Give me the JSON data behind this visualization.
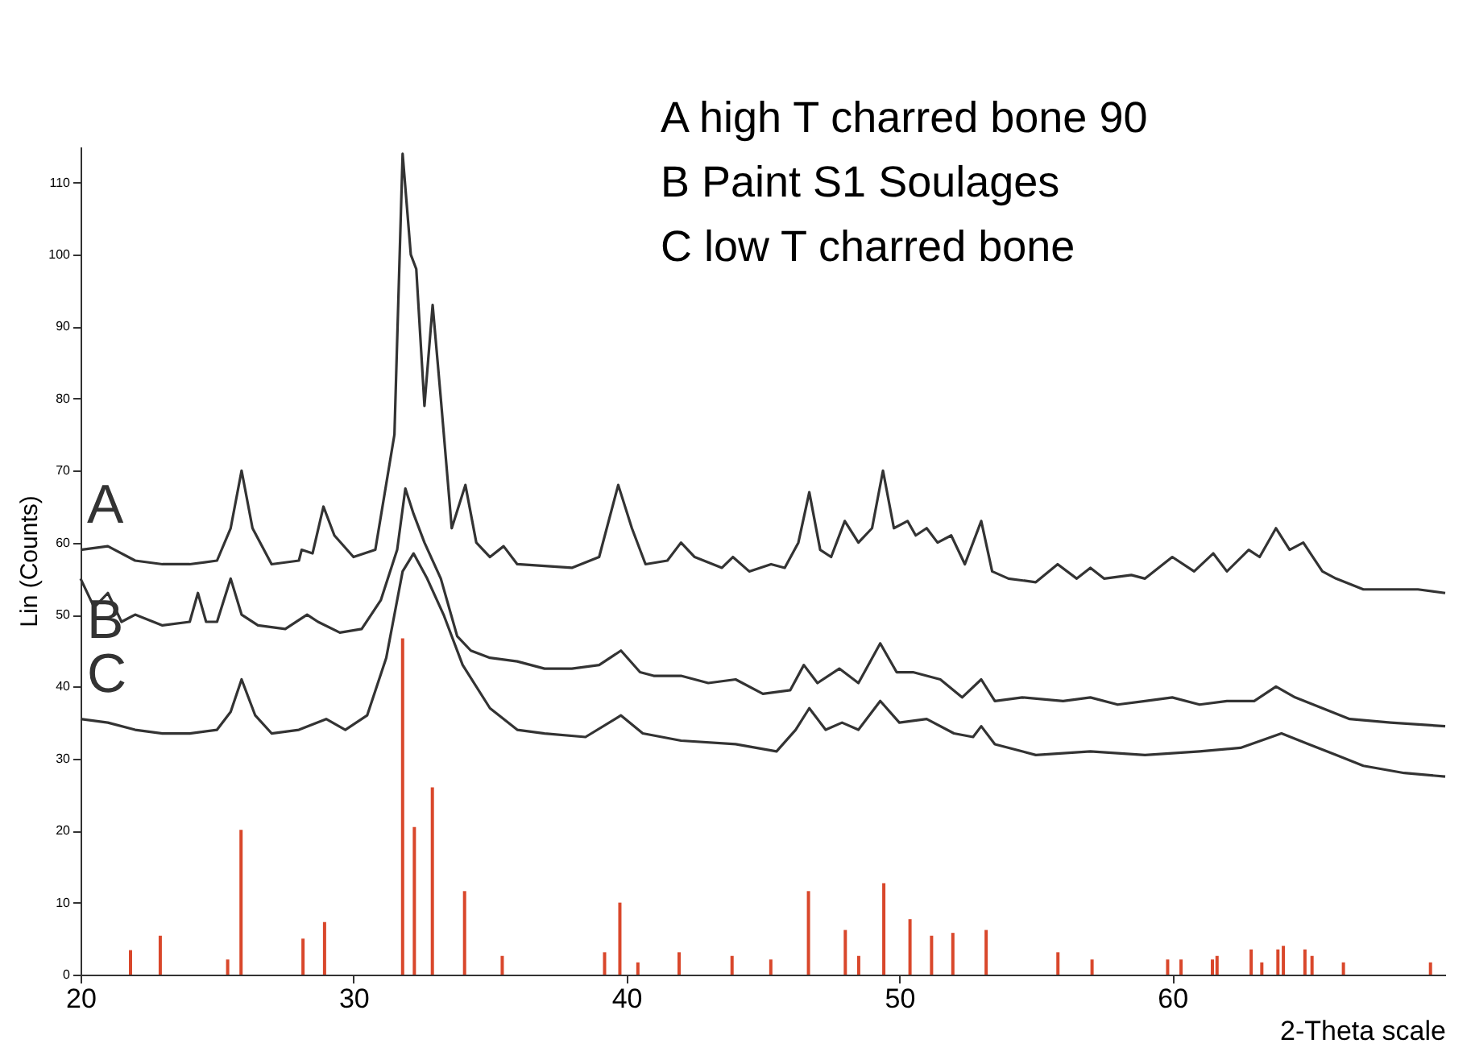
{
  "chart_data": {
    "type": "line",
    "xlabel": "2-Theta scale",
    "ylabel": "Lin (Counts)",
    "annotations": [
      "A high T charred bone 90",
      "B Paint S1 Soulages",
      "C low T charred bone"
    ],
    "xlim": [
      20,
      70
    ],
    "xticks": [
      20,
      30,
      40,
      50,
      60
    ],
    "ylim": [
      0,
      115
    ],
    "yticks": [
      0,
      10,
      20,
      30,
      40,
      50,
      60,
      70,
      80,
      90,
      100,
      110
    ],
    "grid": false,
    "marker": "none",
    "line_style": "solid",
    "series": [
      {
        "name": "A",
        "color": "#333333",
        "x": [
          20,
          21,
          22,
          23,
          24,
          25,
          25.5,
          25.9,
          26.3,
          27,
          28,
          28.1,
          28.5,
          28.9,
          29.3,
          30,
          30.8,
          31.5,
          31.8,
          32.1,
          32.3,
          32.6,
          32.9,
          33.2,
          33.6,
          34.1,
          34.5,
          35,
          35.5,
          36,
          38,
          39,
          39.7,
          40.2,
          40.7,
          41.5,
          42,
          42.5,
          43.5,
          43.9,
          44.5,
          45.3,
          45.8,
          46.3,
          46.7,
          47.1,
          47.5,
          48,
          48.5,
          49,
          49.4,
          49.8,
          50.3,
          50.6,
          51,
          51.4,
          51.9,
          52.4,
          53,
          53.4,
          54,
          55,
          55.8,
          56.5,
          57,
          57.5,
          58.5,
          59,
          60,
          60.8,
          61.5,
          62,
          62.8,
          63.2,
          63.8,
          64.3,
          64.8,
          65.5,
          66,
          67,
          68,
          69,
          70
        ],
        "values": [
          59,
          59.5,
          57.5,
          57,
          57,
          57.5,
          62,
          70,
          62,
          57,
          57.5,
          59,
          58.5,
          65,
          61,
          58,
          59,
          75,
          114,
          100,
          98,
          79,
          93,
          80,
          62,
          68,
          60,
          58,
          59.5,
          57,
          56.5,
          58,
          68,
          62,
          57,
          57.5,
          60,
          58,
          56.5,
          58,
          56,
          57,
          56.5,
          60,
          67,
          59,
          58,
          63,
          60,
          62,
          70,
          62,
          63,
          61,
          62,
          60,
          61,
          57,
          63,
          56,
          55,
          54.5,
          57,
          55,
          56.5,
          55,
          55.5,
          55,
          58,
          56,
          58.5,
          56,
          59,
          58,
          62,
          59,
          60,
          56,
          55,
          53.5,
          53.5,
          53.5,
          53
        ]
      },
      {
        "name": "B",
        "color": "#333333",
        "x": [
          20,
          20.5,
          21,
          21.5,
          22,
          23,
          24,
          24.3,
          24.6,
          25,
          25.5,
          25.9,
          26.5,
          27.5,
          28.3,
          28.7,
          29.5,
          30.3,
          31,
          31.6,
          31.9,
          32.2,
          32.6,
          33.2,
          33.8,
          34.3,
          35,
          36,
          37,
          38,
          39,
          39.8,
          40.5,
          41,
          42,
          43,
          44,
          45,
          46,
          46.5,
          47,
          47.8,
          48.5,
          49.3,
          49.9,
          50.5,
          51.5,
          52.3,
          53,
          53.5,
          54.5,
          56,
          57,
          58,
          59,
          60,
          61,
          62,
          63,
          63.8,
          64.5,
          65.5,
          66.5,
          68,
          70
        ],
        "values": [
          55,
          51,
          53,
          49,
          50,
          48.5,
          49,
          53,
          49,
          49,
          55,
          50,
          48.5,
          48,
          50,
          49,
          47.5,
          48,
          52,
          59,
          67.5,
          64,
          60,
          55,
          47,
          45,
          44,
          43.5,
          42.5,
          42.5,
          43,
          45,
          42,
          41.5,
          41.5,
          40.5,
          41,
          39,
          39.5,
          43,
          40.5,
          42.5,
          40.5,
          46,
          42,
          42,
          41,
          38.5,
          41,
          38,
          38.5,
          38,
          38.5,
          37.5,
          38,
          38.5,
          37.5,
          38,
          38,
          40,
          38.5,
          37,
          35.5,
          35,
          34.5
        ]
      },
      {
        "name": "C",
        "color": "#333333",
        "x": [
          20,
          21,
          22,
          23,
          24,
          25,
          25.5,
          25.9,
          26.4,
          27,
          28,
          29,
          29.7,
          30.5,
          31.2,
          31.8,
          32.2,
          32.7,
          33.3,
          34,
          35,
          36,
          37,
          38.5,
          39.8,
          40.6,
          42,
          44,
          45.5,
          46.2,
          46.7,
          47.3,
          47.9,
          48.5,
          49.3,
          50,
          51,
          52,
          52.7,
          53,
          53.5,
          55,
          57,
          59,
          61,
          62.5,
          64,
          65,
          66,
          67,
          68.5,
          70
        ],
        "values": [
          35.5,
          35,
          34,
          33.5,
          33.5,
          34,
          36.5,
          41,
          36,
          33.5,
          34,
          35.5,
          34,
          36,
          44,
          56,
          58.5,
          55,
          50,
          43,
          37,
          34,
          33.5,
          33,
          36,
          33.5,
          32.5,
          32,
          31,
          34,
          37,
          34,
          35,
          34,
          38,
          35,
          35.5,
          33.5,
          33,
          34.5,
          32,
          30.5,
          31,
          30.5,
          31,
          31.5,
          33.5,
          32,
          30.5,
          29,
          28,
          27.5
        ]
      },
      {
        "type": "bar",
        "color": "#d9472b",
        "x": [
          21.83,
          22.92,
          25.39,
          25.88,
          28.15,
          28.94,
          31.8,
          32.23,
          32.89,
          34.07,
          35.45,
          39.2,
          39.76,
          40.42,
          41.93,
          43.87,
          45.29,
          46.67,
          48.02,
          48.51,
          49.43,
          50.39,
          51.18,
          51.96,
          53.18,
          55.81,
          57.06,
          59.83,
          60.32,
          61.47,
          61.64,
          62.89,
          63.28,
          63.87,
          64.07,
          64.86,
          65.12,
          66.27,
          69.46
        ],
        "values": [
          3.4,
          5.4,
          2.1,
          20.1,
          5,
          7.3,
          46.7,
          20.5,
          26,
          11.6,
          2.6,
          3.1,
          10,
          1.7,
          3.1,
          2.6,
          2.1,
          11.6,
          6.2,
          2.6,
          12.7,
          7.7,
          5.4,
          5.8,
          6.2,
          3.1,
          2.1,
          2.1,
          2.1,
          2.1,
          2.6,
          3.5,
          1.7,
          3.5,
          4,
          3.5,
          2.6,
          1.7,
          1.7
        ]
      }
    ]
  }
}
